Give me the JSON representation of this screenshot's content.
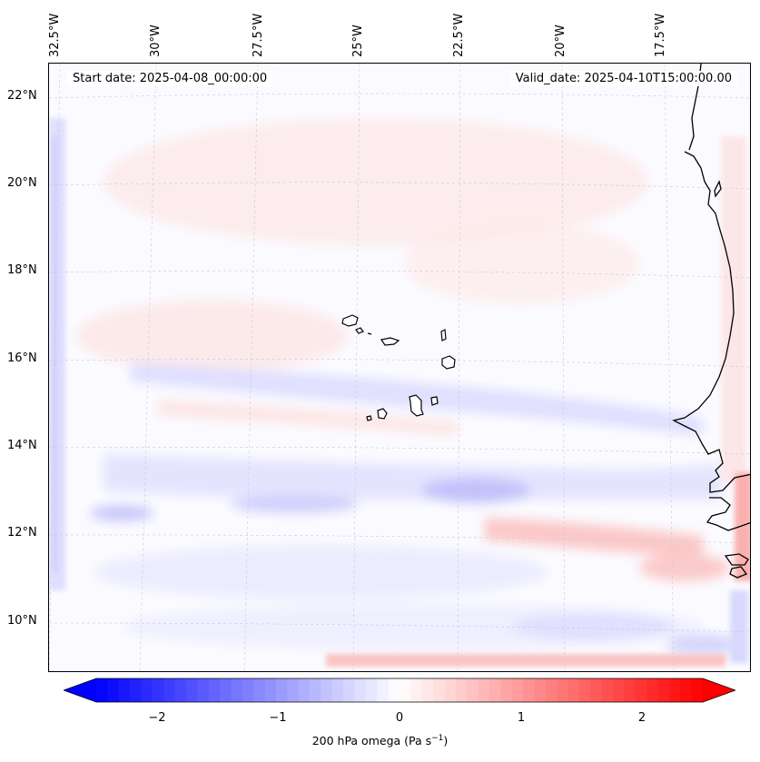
{
  "map": {
    "start_date": "Start date: 2025-04-08_00:00:00",
    "valid_date": "Valid_date: 2025-04-10T15:00:00.00",
    "lon_labels": [
      "32.5°W",
      "30°W",
      "27.5°W",
      "25°W",
      "22.5°W",
      "20°W",
      "17.5°W"
    ],
    "lat_labels": [
      "22°N",
      "20°N",
      "18°N",
      "16°N",
      "14°N",
      "12°N",
      "10°N"
    ]
  },
  "colorbar": {
    "ticks": [
      "−2",
      "−1",
      "0",
      "1",
      "2"
    ],
    "label": "200 hPa omega (Pa s",
    "label_sup": "−1",
    "label_end": ")",
    "min": -2.7,
    "max": 2.7,
    "color_negative": "#0000ff",
    "color_zero": "#ffffff",
    "color_positive": "#ff0000"
  }
}
